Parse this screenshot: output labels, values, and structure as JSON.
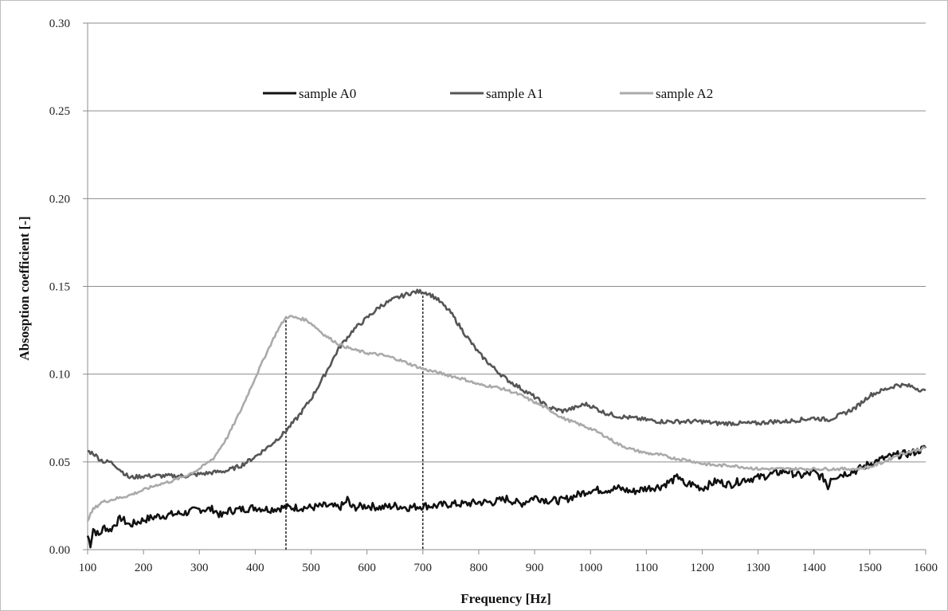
{
  "chart_data": {
    "type": "line",
    "title": "",
    "xlabel": "Frequency [Hz]",
    "ylabel": "Absosption coefficient [-]",
    "xlim": [
      100,
      1600
    ],
    "ylim": [
      0.0,
      0.3
    ],
    "xticks": [
      "100",
      "200",
      "300",
      "400",
      "500",
      "600",
      "700",
      "800",
      "900",
      "1000",
      "1100",
      "1200",
      "1300",
      "1400",
      "1500",
      "1600"
    ],
    "yticks": [
      "0.00",
      "0.05",
      "0.10",
      "0.15",
      "0.20",
      "0.25",
      "0.30"
    ],
    "grid": "horizontal",
    "legend_position": "top-center",
    "reference_lines_x": [
      455,
      700
    ],
    "series": [
      {
        "name": "sample A0",
        "color": "#111111",
        "x": [
          100,
          105,
          110,
          120,
          130,
          140,
          150,
          160,
          175,
          200,
          225,
          250,
          275,
          300,
          325,
          340,
          350,
          375,
          400,
          425,
          450,
          475,
          500,
          525,
          550,
          560,
          565,
          570,
          575,
          600,
          625,
          650,
          675,
          700,
          725,
          750,
          775,
          800,
          825,
          850,
          875,
          900,
          925,
          950,
          975,
          1000,
          1025,
          1050,
          1075,
          1100,
          1125,
          1150,
          1160,
          1170,
          1175,
          1200,
          1225,
          1250,
          1275,
          1300,
          1325,
          1350,
          1375,
          1400,
          1420,
          1425,
          1430,
          1450,
          1475,
          1500,
          1525,
          1550,
          1575,
          1600
        ],
        "y": [
          0.008,
          0.003,
          0.012,
          0.008,
          0.013,
          0.011,
          0.015,
          0.018,
          0.014,
          0.017,
          0.019,
          0.02,
          0.021,
          0.023,
          0.023,
          0.019,
          0.022,
          0.023,
          0.024,
          0.023,
          0.024,
          0.024,
          0.024,
          0.025,
          0.024,
          0.026,
          0.029,
          0.025,
          0.024,
          0.025,
          0.024,
          0.025,
          0.024,
          0.025,
          0.025,
          0.026,
          0.026,
          0.027,
          0.027,
          0.029,
          0.026,
          0.03,
          0.028,
          0.028,
          0.031,
          0.034,
          0.034,
          0.035,
          0.033,
          0.035,
          0.036,
          0.04,
          0.042,
          0.035,
          0.038,
          0.035,
          0.039,
          0.037,
          0.04,
          0.041,
          0.043,
          0.045,
          0.042,
          0.044,
          0.04,
          0.035,
          0.041,
          0.043,
          0.045,
          0.049,
          0.052,
          0.054,
          0.055,
          0.058
        ]
      },
      {
        "name": "sample A1",
        "color": "#555555",
        "x": [
          100,
          110,
          120,
          130,
          140,
          150,
          160,
          175,
          200,
          225,
          250,
          275,
          300,
          325,
          350,
          375,
          400,
          425,
          450,
          475,
          500,
          525,
          550,
          575,
          600,
          625,
          650,
          675,
          690,
          700,
          710,
          725,
          750,
          775,
          800,
          825,
          850,
          875,
          900,
          925,
          950,
          975,
          990,
          1000,
          1025,
          1050,
          1075,
          1100,
          1125,
          1150,
          1175,
          1200,
          1225,
          1250,
          1275,
          1300,
          1325,
          1350,
          1375,
          1400,
          1425,
          1450,
          1475,
          1500,
          1525,
          1550,
          1575,
          1600
        ],
        "y": [
          0.056,
          0.055,
          0.052,
          0.05,
          0.05,
          0.048,
          0.045,
          0.041,
          0.042,
          0.042,
          0.042,
          0.042,
          0.043,
          0.044,
          0.045,
          0.048,
          0.053,
          0.059,
          0.066,
          0.075,
          0.086,
          0.1,
          0.115,
          0.125,
          0.132,
          0.139,
          0.143,
          0.146,
          0.147,
          0.147,
          0.146,
          0.143,
          0.135,
          0.123,
          0.112,
          0.104,
          0.097,
          0.092,
          0.087,
          0.081,
          0.079,
          0.081,
          0.083,
          0.082,
          0.078,
          0.076,
          0.075,
          0.074,
          0.073,
          0.073,
          0.073,
          0.073,
          0.072,
          0.072,
          0.072,
          0.072,
          0.073,
          0.073,
          0.074,
          0.075,
          0.074,
          0.077,
          0.081,
          0.088,
          0.091,
          0.094,
          0.093,
          0.09
        ]
      },
      {
        "name": "sample A2",
        "color": "#aaaaaa",
        "x": [
          100,
          110,
          125,
          150,
          175,
          200,
          225,
          250,
          275,
          300,
          325,
          350,
          375,
          400,
          420,
          440,
          450,
          455,
          460,
          475,
          490,
          500,
          525,
          550,
          575,
          600,
          625,
          650,
          675,
          700,
          725,
          750,
          775,
          800,
          825,
          850,
          875,
          900,
          925,
          950,
          975,
          1000,
          1025,
          1050,
          1075,
          1100,
          1125,
          1150,
          1175,
          1200,
          1225,
          1250,
          1275,
          1300,
          1325,
          1350,
          1375,
          1400,
          1425,
          1450,
          1475,
          1500,
          1525,
          1550,
          1575,
          1600
        ],
        "y": [
          0.017,
          0.023,
          0.027,
          0.029,
          0.031,
          0.034,
          0.037,
          0.039,
          0.042,
          0.046,
          0.052,
          0.064,
          0.08,
          0.098,
          0.112,
          0.125,
          0.13,
          0.132,
          0.133,
          0.132,
          0.131,
          0.129,
          0.122,
          0.117,
          0.114,
          0.112,
          0.111,
          0.109,
          0.106,
          0.103,
          0.101,
          0.099,
          0.097,
          0.094,
          0.093,
          0.091,
          0.088,
          0.084,
          0.08,
          0.075,
          0.072,
          0.069,
          0.065,
          0.06,
          0.057,
          0.055,
          0.054,
          0.052,
          0.051,
          0.049,
          0.048,
          0.048,
          0.047,
          0.046,
          0.046,
          0.046,
          0.046,
          0.046,
          0.046,
          0.046,
          0.046,
          0.047,
          0.05,
          0.054,
          0.056,
          0.058
        ]
      }
    ]
  }
}
